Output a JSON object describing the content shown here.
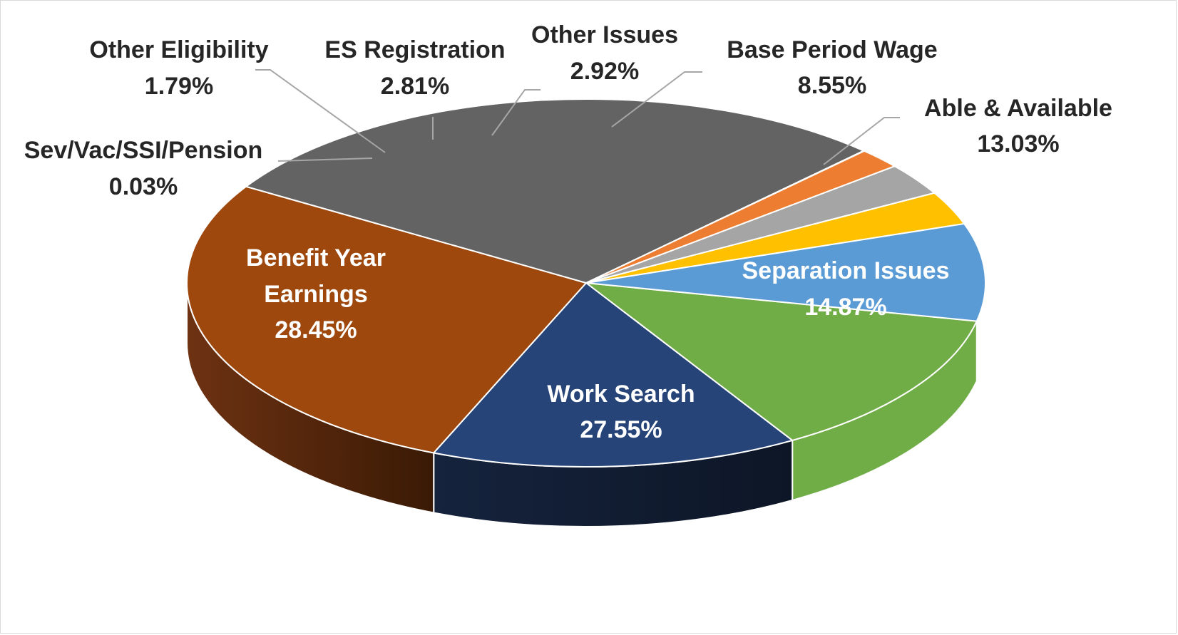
{
  "chart_data": {
    "type": "pie",
    "variant": "3d",
    "title": "",
    "slices": [
      {
        "name": "Able & Available",
        "value": 13.03,
        "label": "13.03%",
        "color": "#70ad47"
      },
      {
        "name": "Separation Issues",
        "value": 14.87,
        "label": "14.87%",
        "color": "#264478"
      },
      {
        "name": "Work Search",
        "value": 27.55,
        "label": "27.55%",
        "color": "#9e480e"
      },
      {
        "name": "Benefit Year Earnings",
        "value": 28.45,
        "label": "28.45%",
        "color": "#636363"
      },
      {
        "name": "Sev/Vac/SSI/Pension",
        "value": 0.03,
        "label": "0.03%",
        "color": "#4472c4"
      },
      {
        "name": "Other Eligibility",
        "value": 1.79,
        "label": "1.79%",
        "color": "#ed7d31"
      },
      {
        "name": "ES Registration",
        "value": 2.81,
        "label": "2.81%",
        "color": "#a5a5a5"
      },
      {
        "name": "Other Issues",
        "value": 2.92,
        "label": "2.92%",
        "color": "#ffc000"
      },
      {
        "name": "Base Period Wage",
        "value": 8.55,
        "label": "8.55%",
        "color": "#5b9bd5"
      }
    ],
    "labels": {
      "able": {
        "line1": "Able & Available",
        "line2": "13.03%"
      },
      "separation": {
        "line1": "Separation Issues",
        "line2": "14.87%"
      },
      "work": {
        "line1": "Work Search",
        "line2": "27.55%"
      },
      "benefit": {
        "line1": "Benefit Year",
        "line2": "Earnings",
        "line3": "28.45%"
      },
      "sev": {
        "line1": "Sev/Vac/SSI/Pension",
        "line2": "0.03%"
      },
      "othelig": {
        "line1": "Other Eligibility",
        "line2": "1.79%"
      },
      "es": {
        "line1": "ES Registration",
        "line2": "2.81%"
      },
      "othiss": {
        "line1": "Other Issues",
        "line2": "2.92%"
      },
      "base": {
        "line1": "Base Period Wage",
        "line2": "8.55%"
      }
    }
  }
}
